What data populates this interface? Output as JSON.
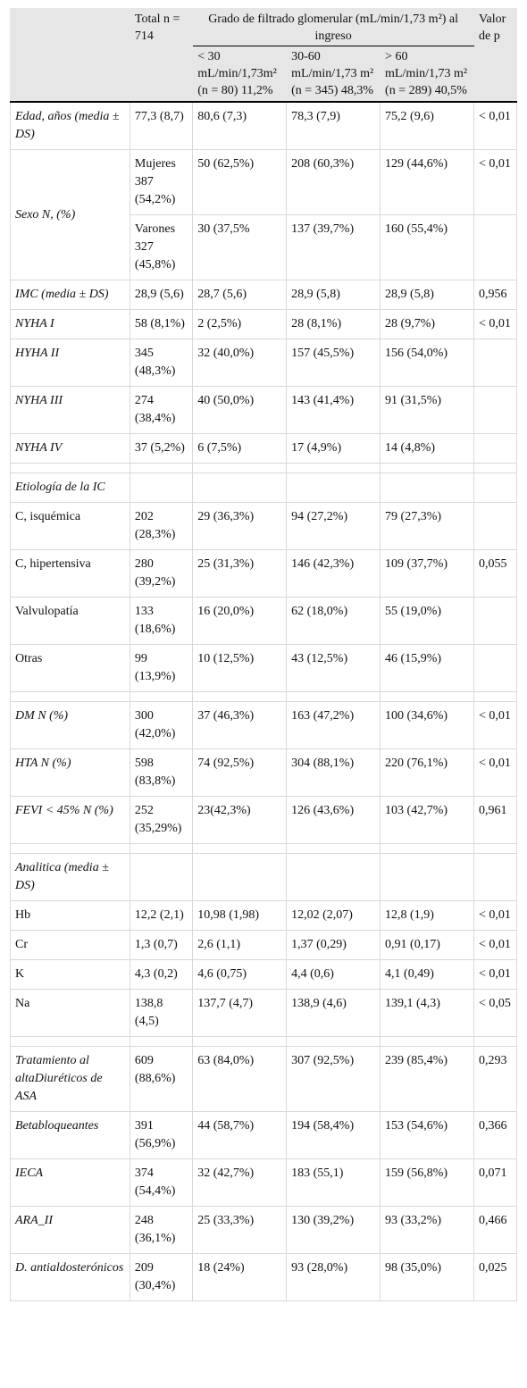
{
  "header": {
    "total": "Total n = 714",
    "group_title": "Grado de filtrado glomerular (mL/min/1,73 m²) al ingreso",
    "p_value": "Valor de p",
    "sub": [
      "< 30 mL/min/1,73m² (n = 80) 11,2%",
      "30-60 mL/min/1,73 m² (n = 345) 48,3%",
      "> 60 mL/min/1,73 m² (n = 289) 40,5%"
    ]
  },
  "rows": {
    "edad": [
      "Edad, años (media ± DS)",
      "77,3 (8,7)",
      "80,6 (7,3)",
      "78,3 (7,9)",
      "75,2 (9,6)",
      "< 0,01"
    ],
    "sexo_label": "Sexo N, (%)",
    "mujeres": [
      "Mujeres 387 (54,2%)",
      "50 (62,5%)",
      "208 (60,3%)",
      "129 (44,6%)",
      "< 0,01"
    ],
    "varones": [
      "Varones 327 (45,8%)",
      "30 (37,5%",
      "137 (39,7%)",
      "160 (55,4%)",
      ""
    ],
    "imc": [
      "IMC (media ± DS)",
      "28,9 (5,6)",
      "28,7 (5,6)",
      "28,9 (5,8)",
      "28,9 (5,8)",
      "0,956"
    ],
    "nyha1": [
      "NYHA I",
      "58 (8,1%)",
      "2 (2,5%)",
      "28 (8,1%)",
      "28 (9,7%)",
      "< 0,01"
    ],
    "nyha2": [
      "HYHA II",
      "345 (48,3%)",
      "32 (40,0%)",
      "157 (45,5%)",
      "156 (54,0%)",
      ""
    ],
    "nyha3": [
      "NYHA III",
      "274 (38,4%)",
      "40 (50,0%)",
      "143 (41,4%)",
      "91 (31,5%)",
      ""
    ],
    "nyha4": [
      "NYHA IV",
      "37 (5,2%)",
      "6 (7,5%)",
      "17 (4,9%)",
      "14 (4,8%)",
      ""
    ],
    "etiologia": "Etiología de la IC",
    "isquemica": [
      "C, isquémica",
      "202 (28,3%)",
      "29 (36,3%)",
      "94 (27,2%)",
      "79 (27,3%)",
      ""
    ],
    "hipertensiva": [
      "C, hipertensiva",
      "280 (39,2%)",
      "25 (31,3%)",
      "146 (42,3%)",
      "109 (37,7%)",
      "0,055"
    ],
    "valvulopatia": [
      "Valvulopatía",
      "133 (18,6%)",
      "16 (20,0%)",
      "62 (18,0%)",
      "55 (19,0%)",
      ""
    ],
    "otras": [
      "Otras",
      "99 (13,9%)",
      "10 (12,5%)",
      "43 (12,5%)",
      "46 (15,9%)",
      ""
    ],
    "dm": [
      "DM N (%)",
      "300 (42,0%)",
      "37 (46,3%)",
      "163 (47,2%)",
      "100 (34,6%)",
      "< 0,01"
    ],
    "hta": [
      "HTA N (%)",
      "598 (83,8%)",
      "74 (92,5%)",
      "304 (88,1%)",
      "220 (76,1%)",
      "< 0,01"
    ],
    "fevi": [
      "FEVI < 45% N (%)",
      "252 (35,29%)",
      "23(42,3%)",
      "126 (43,6%)",
      "103 (42,7%)",
      "0,961"
    ],
    "analitica": "Analitica (media ± DS)",
    "hb": [
      "Hb",
      "12,2 (2,1)",
      "10,98 (1,98)",
      "12,02 (2,07)",
      "12,8 (1,9)",
      "< 0,01"
    ],
    "cr": [
      "Cr",
      "1,3 (0,7)",
      "2,6 (1,1)",
      "1,37 (0,29)",
      "0,91 (0,17)",
      "< 0,01"
    ],
    "k": [
      "K",
      "4,3 (0,2)",
      "4,6 (0,75)",
      "4,4 (0,6)",
      "4,1 (0,49)",
      "< 0,01"
    ],
    "na": [
      "Na",
      "138,8 (4,5)",
      "137,7 (4,7)",
      "138,9 (4,6)",
      "139,1 (4,3)",
      "< 0,05"
    ],
    "diureticos": [
      "Tratamiento al altaDiuréticos de ASA",
      "609 (88,6%)",
      "63 (84,0%)",
      "307 (92,5%)",
      "239 (85,4%)",
      "0,293"
    ],
    "betabloq": [
      "Betabloqueantes",
      "391 (56,9%)",
      "44 (58,7%)",
      "194 (58,4%)",
      "153 (54,6%)",
      "0,366"
    ],
    "ieca": [
      "IECA",
      "374 (54,4%)",
      "32 (42,7%)",
      "183 (55,1)",
      "159 (56,8%)",
      "0,071"
    ],
    "ara": [
      "ARA_II",
      "248 (36,1%)",
      "25 (33,3%)",
      "130 (39,2%)",
      "93 (33,2%)",
      "0,466"
    ],
    "antialdo": [
      "D. antialdosterónicos",
      "209 (30,4%)",
      "18 (24%)",
      "93 (28,0%)",
      "98 (35,0%)",
      "0,025"
    ]
  }
}
